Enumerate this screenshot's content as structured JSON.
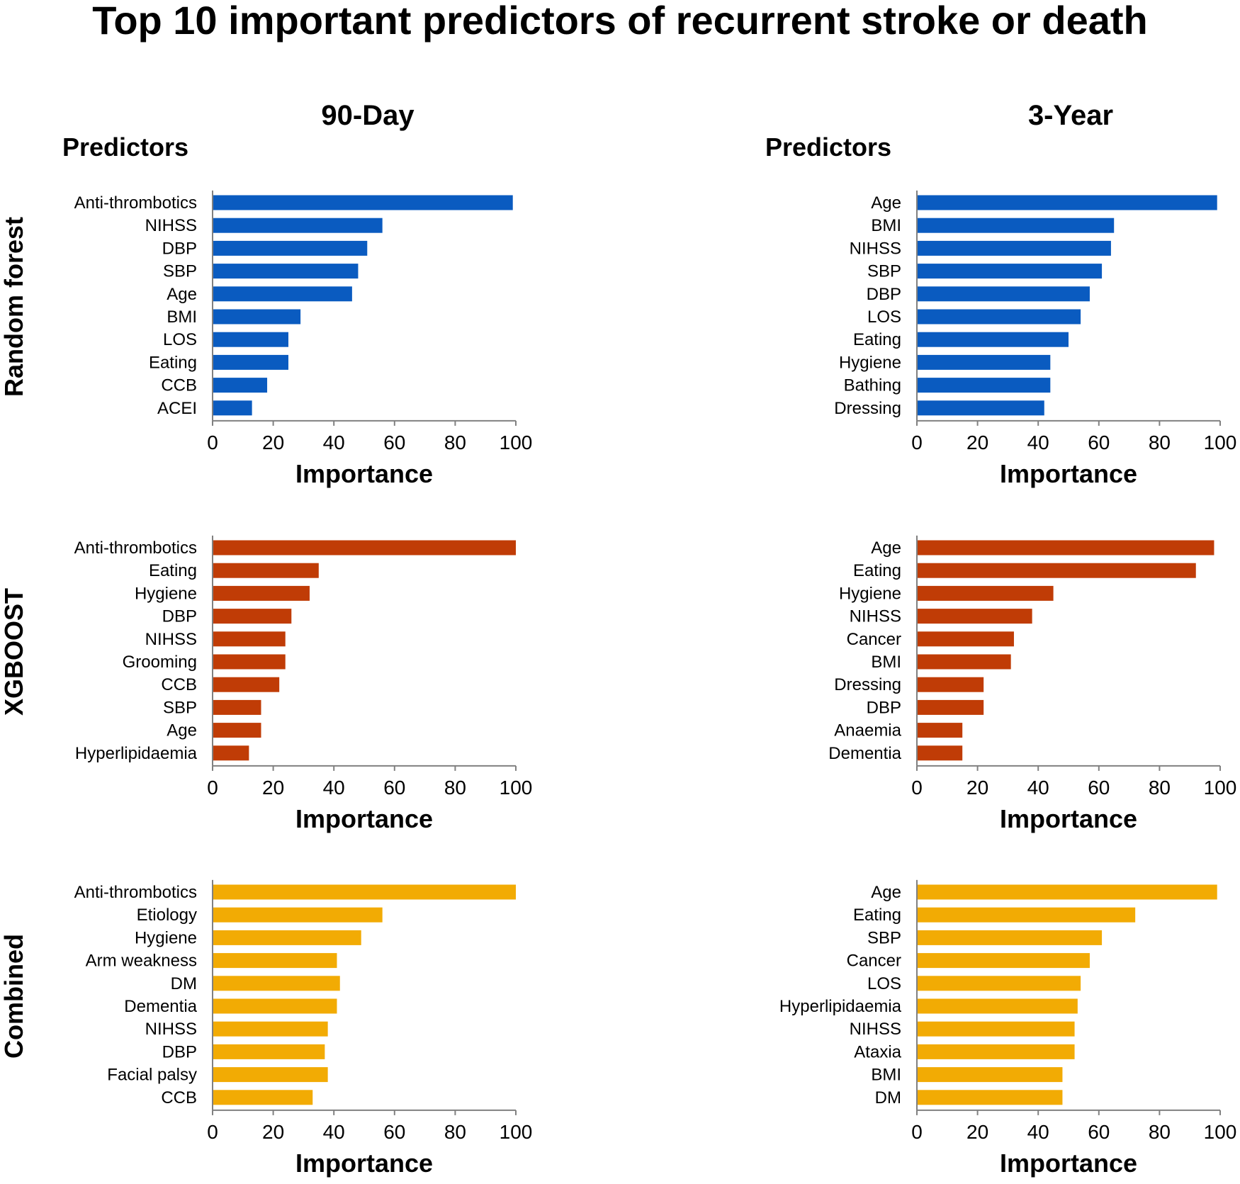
{
  "title": "Top 10 important predictors of recurrent stroke or death",
  "columns": [
    "90-Day",
    "3-Year"
  ],
  "rows": [
    "Random forest",
    "XGBOOST",
    "Combined"
  ],
  "predictors_heading": "Predictors",
  "colors": {
    "Random forest": "#0a5bc0",
    "XGBOOST": "#c03c06",
    "Combined": "#f2ab04"
  },
  "chart_data": [
    {
      "type": "bar",
      "orientation": "horizontal",
      "row": "Random forest",
      "column": "90-Day",
      "categories": [
        "Anti-thrombotics",
        "NIHSS",
        "DBP",
        "SBP",
        "Age",
        "BMI",
        "LOS",
        "Eating",
        "CCB",
        "ACEI"
      ],
      "values": [
        99,
        56,
        51,
        48,
        46,
        29,
        25,
        25,
        18,
        13
      ],
      "xlabel": "Importance",
      "ylabel": "Predictors",
      "xlim": [
        0,
        100
      ],
      "xticks": [
        0,
        20,
        40,
        60,
        80,
        100
      ]
    },
    {
      "type": "bar",
      "orientation": "horizontal",
      "row": "Random forest",
      "column": "3-Year",
      "categories": [
        "Age",
        "BMI",
        "NIHSS",
        "SBP",
        "DBP",
        "LOS",
        "Eating",
        "Hygiene",
        "Bathing",
        "Dressing"
      ],
      "values": [
        99,
        65,
        64,
        61,
        57,
        54,
        50,
        44,
        44,
        42
      ],
      "xlabel": "Importance",
      "ylabel": "Predictors",
      "xlim": [
        0,
        100
      ],
      "xticks": [
        0,
        20,
        40,
        60,
        80,
        100
      ]
    },
    {
      "type": "bar",
      "orientation": "horizontal",
      "row": "XGBOOST",
      "column": "90-Day",
      "categories": [
        "Anti-thrombotics",
        "Eating",
        "Hygiene",
        "DBP",
        "NIHSS",
        "Grooming",
        "CCB",
        "SBP",
        "Age",
        "Hyperlipidaemia"
      ],
      "values": [
        100,
        35,
        32,
        26,
        24,
        24,
        22,
        16,
        16,
        12
      ],
      "xlabel": "Importance",
      "ylabel": "",
      "xlim": [
        0,
        100
      ],
      "xticks": [
        0,
        20,
        40,
        60,
        80,
        100
      ]
    },
    {
      "type": "bar",
      "orientation": "horizontal",
      "row": "XGBOOST",
      "column": "3-Year",
      "categories": [
        "Age",
        "Eating",
        "Hygiene",
        "NIHSS",
        "Cancer",
        "BMI",
        "Dressing",
        "DBP",
        "Anaemia",
        "Dementia"
      ],
      "values": [
        98,
        92,
        45,
        38,
        32,
        31,
        22,
        22,
        15,
        15
      ],
      "xlabel": "Importance",
      "ylabel": "",
      "xlim": [
        0,
        100
      ],
      "xticks": [
        0,
        20,
        40,
        60,
        80,
        100
      ]
    },
    {
      "type": "bar",
      "orientation": "horizontal",
      "row": "Combined",
      "column": "90-Day",
      "categories": [
        "Anti-thrombotics",
        "Etiology",
        "Hygiene",
        "Arm weakness",
        "DM",
        "Dementia",
        "NIHSS",
        "DBP",
        "Facial palsy",
        "CCB"
      ],
      "values": [
        100,
        56,
        49,
        41,
        42,
        41,
        38,
        37,
        38,
        33
      ],
      "xlabel": "Importance",
      "ylabel": "",
      "xlim": [
        0,
        100
      ],
      "xticks": [
        0,
        20,
        40,
        60,
        80,
        100
      ]
    },
    {
      "type": "bar",
      "orientation": "horizontal",
      "row": "Combined",
      "column": "3-Year",
      "categories": [
        "Age",
        "Eating",
        "SBP",
        "Cancer",
        "LOS",
        "Hyperlipidaemia",
        "NIHSS",
        "Ataxia",
        "BMI",
        "DM"
      ],
      "values": [
        99,
        72,
        61,
        57,
        54,
        53,
        52,
        52,
        48,
        48
      ],
      "xlabel": "Importance",
      "ylabel": "",
      "xlim": [
        0,
        100
      ],
      "xticks": [
        0,
        20,
        40,
        60,
        80,
        100
      ]
    }
  ]
}
